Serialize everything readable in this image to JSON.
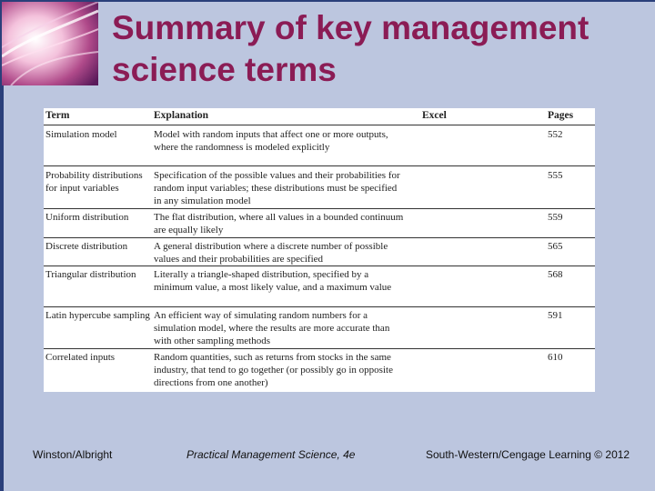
{
  "slide": {
    "title": "Summary of key management science terms"
  },
  "table": {
    "headers": {
      "term": "Term",
      "explanation": "Explanation",
      "excel": "Excel",
      "pages": "Pages"
    },
    "rows": [
      {
        "term": "Simulation model",
        "explanation": "Model with random inputs that affect one or more outputs, where the randomness is modeled explicitly",
        "excel": "",
        "pages": "552"
      },
      {
        "term": "Probability distributions for input variables",
        "explanation": "Specification of the possible values and their probabilities for random input variables; these distributions must be specified in any simulation model",
        "excel": "",
        "pages": "555"
      },
      {
        "term": "Uniform distribution",
        "explanation": "The flat distribution, where all values in a bounded continuum are equally likely",
        "excel": "",
        "pages": "559"
      },
      {
        "term": "Discrete distribution",
        "explanation": "A general distribution where a discrete number of possible values and their probabilities are specified",
        "excel": "",
        "pages": "565"
      },
      {
        "term": "Triangular distribution",
        "explanation": "Literally a triangle-shaped distribution, specified by a minimum value, a most likely value, and a maximum value",
        "excel": "",
        "pages": "568"
      },
      {
        "term": "Latin hypercube sampling",
        "explanation": "An efficient way of simulating random numbers for a simulation model, where the results are more accurate than with other sampling methods",
        "excel": "",
        "pages": "591"
      },
      {
        "term": "Correlated inputs",
        "explanation": "Random quantities, such as returns from stocks in the same industry, that tend to go together (or possibly go in opposite directions from one another)",
        "excel": "",
        "pages": "610"
      }
    ]
  },
  "footer": {
    "left": "Winston/Albright",
    "center": "Practical Management Science, 4e",
    "right": "South-Western/Cengage Learning © 2012"
  },
  "colors": {
    "background": "#bcc6df",
    "title": "#8b1c55",
    "border": "#2a3f7a"
  }
}
